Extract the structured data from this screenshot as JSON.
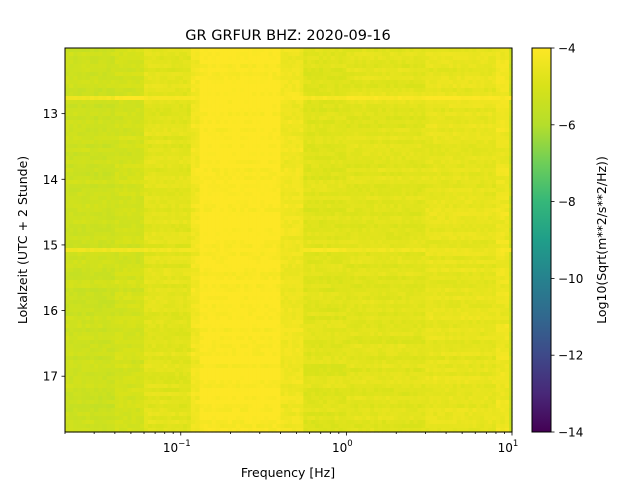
{
  "chart_data": {
    "type": "heatmap",
    "title": "GR GRFUR  BHZ: 2020-09-16",
    "xlabel": "Frequency [Hz]",
    "ylabel": "Lokalzeit (UTC + 2 Stunde)",
    "x_scale": "log",
    "xlim": [
      0.02,
      10
    ],
    "ylim": [
      17.85,
      12.0
    ],
    "y_inverted": true,
    "x_ticks": [
      {
        "value": 0.1,
        "base": "10",
        "exp": "−1"
      },
      {
        "value": 1,
        "base": "10",
        "exp": "0"
      },
      {
        "value": 10,
        "base": "10",
        "exp": "1"
      }
    ],
    "y_ticks": [
      {
        "value": 13,
        "label": "13"
      },
      {
        "value": 14,
        "label": "14"
      },
      {
        "value": 15,
        "label": "15"
      },
      {
        "value": 16,
        "label": "16"
      },
      {
        "value": 17,
        "label": "17"
      }
    ],
    "colorbar": {
      "label": "Log10(Sqrt(m**2/s**2/Hz))",
      "colormap": "viridis",
      "range": [
        -14,
        -4
      ],
      "ticks": [
        {
          "value": -4,
          "label": "−4"
        },
        {
          "value": -6,
          "label": "−6"
        },
        {
          "value": -8,
          "label": "−8"
        },
        {
          "value": -10,
          "label": "−10"
        },
        {
          "value": -12,
          "label": "−12"
        },
        {
          "value": -14,
          "label": "−14"
        }
      ]
    },
    "frequency_bands": [
      {
        "from": 0.02,
        "to": 0.04,
        "level": -5.3
      },
      {
        "from": 0.04,
        "to": 0.06,
        "level": -5.15
      },
      {
        "from": 0.06,
        "to": 0.115,
        "level": -4.75
      },
      {
        "from": 0.115,
        "to": 0.13,
        "level": -4.3
      },
      {
        "from": 0.13,
        "to": 0.4,
        "level": -4.0
      },
      {
        "from": 0.4,
        "to": 0.55,
        "level": -4.35
      },
      {
        "from": 0.55,
        "to": 1.0,
        "level": -4.8
      },
      {
        "from": 1.0,
        "to": 3.0,
        "level": -4.75
      },
      {
        "from": 3.0,
        "to": 8.0,
        "level": -4.6
      },
      {
        "from": 8.0,
        "to": 9.6,
        "level": -4.4
      },
      {
        "from": 9.6,
        "to": 10.0,
        "level": -5.4
      }
    ],
    "time_events": [
      {
        "hour": 12.75,
        "level": -4.15
      },
      {
        "hour": 15.05,
        "level": -4.3
      }
    ]
  }
}
